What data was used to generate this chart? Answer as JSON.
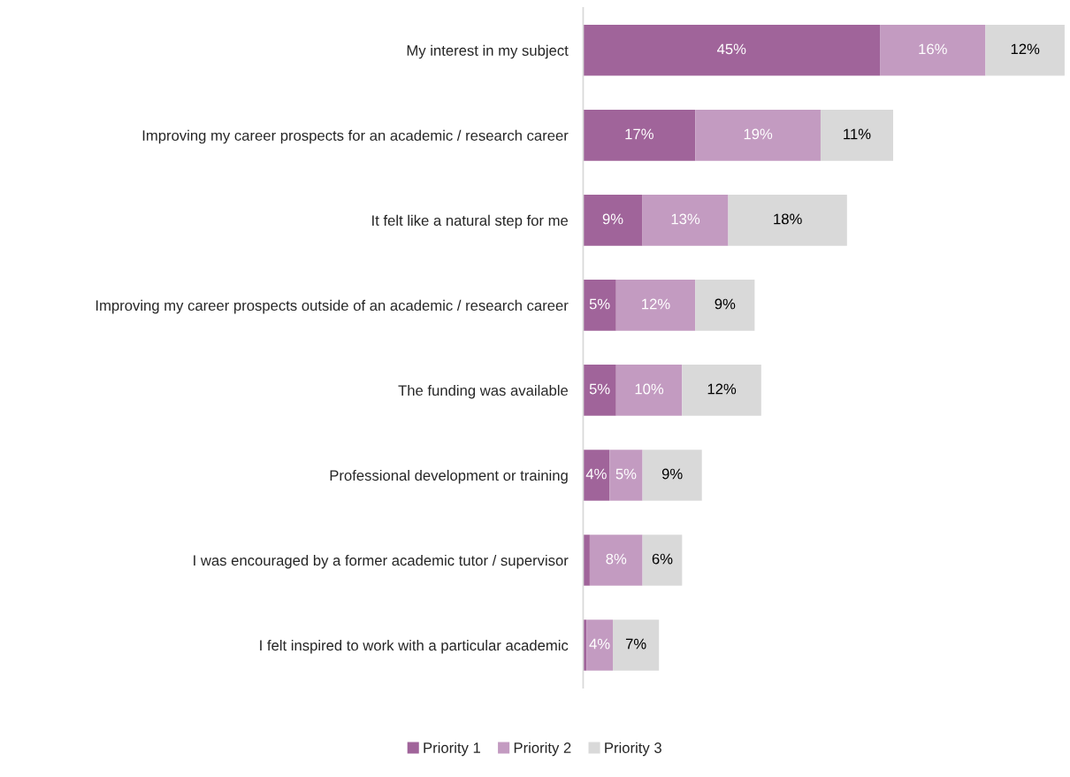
{
  "chart_data": {
    "type": "bar",
    "orientation": "horizontal",
    "stacked": true,
    "legend": "bottom",
    "categories": [
      "My interest in my subject",
      "Improving my career prospects for an academic / research career",
      "It felt like a natural step for me",
      "Improving my career prospects outside of an academic / research career",
      "The funding was available",
      "Professional development or training",
      "I was encouraged by a former academic tutor / supervisor",
      "I felt inspired to work with a particular academic"
    ],
    "series": [
      {
        "name": "Priority 1",
        "color": "#a0649a",
        "values": [
          45,
          17,
          9,
          5,
          5,
          4,
          1,
          0.5
        ],
        "value_labels": [
          "45%",
          "17%",
          "9%",
          "5%",
          "5%",
          "4%",
          null,
          null
        ]
      },
      {
        "name": "Priority 2",
        "color": "#c39bc1",
        "values": [
          16,
          19,
          13,
          12,
          10,
          5,
          8,
          4
        ],
        "value_labels": [
          "16%",
          "19%",
          "13%",
          "12%",
          "10%",
          "5%",
          "8%",
          "4%"
        ]
      },
      {
        "name": "Priority 3",
        "color": "#d9d9d9",
        "values": [
          12,
          11,
          18,
          9,
          12,
          9,
          6,
          7
        ],
        "value_labels": [
          "12%",
          "11%",
          "18%",
          "9%",
          "12%",
          "9%",
          "6%",
          "7%"
        ]
      }
    ]
  }
}
